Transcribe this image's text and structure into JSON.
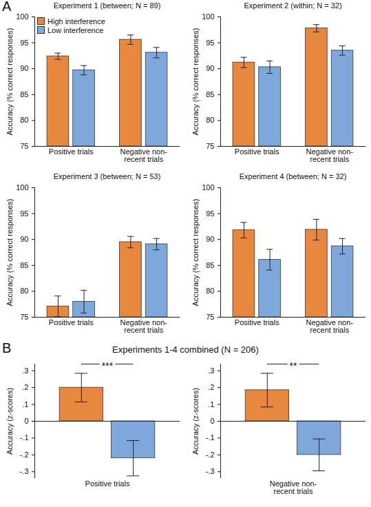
{
  "chart_data": [
    {
      "type": "bar",
      "panel_label": "A",
      "title": "Experiment 1 (between; N = 89)",
      "y_label": "Accuracy (% correct responses)",
      "categories": [
        "Positive trials",
        "Negative non-recent trials"
      ],
      "series": [
        {
          "name": "High interference",
          "color": "#e8873e",
          "values": [
            92.4,
            95.6
          ],
          "errors": [
            0.6,
            0.9
          ]
        },
        {
          "name": "Low interference",
          "color": "#7ea8dc",
          "values": [
            89.7,
            93.1
          ],
          "errors": [
            0.9,
            1.0
          ]
        }
      ],
      "ylim": [
        75,
        100
      ],
      "yticks": [
        75,
        80,
        85,
        90,
        95,
        100
      ],
      "legend": "upper left"
    },
    {
      "type": "bar",
      "title": "Experiment 2 (within; N = 32)",
      "y_label": "Accuracy (% correct responses)",
      "categories": [
        "Positive trials",
        "Negative non-recent trials"
      ],
      "series": [
        {
          "name": "High interference",
          "color": "#e8873e",
          "values": [
            91.2,
            97.8
          ],
          "errors": [
            1.0,
            0.7
          ]
        },
        {
          "name": "Low interference",
          "color": "#7ea8dc",
          "values": [
            90.3,
            93.5
          ],
          "errors": [
            1.2,
            0.9
          ]
        }
      ],
      "ylim": [
        75,
        100
      ],
      "yticks": [
        75,
        80,
        85,
        90,
        95,
        100
      ]
    },
    {
      "type": "bar",
      "title": "Experiment 3 (between; N = 53)",
      "y_label": "Accuracy (% correct responses)",
      "categories": [
        "Positive trials",
        "Negative non-recent trials"
      ],
      "series": [
        {
          "name": "High interference",
          "color": "#e8873e",
          "values": [
            77.1,
            89.5
          ],
          "errors": [
            2.0,
            1.1
          ]
        },
        {
          "name": "Low interference",
          "color": "#7ea8dc",
          "values": [
            78.0,
            89.1
          ],
          "errors": [
            2.2,
            1.1
          ]
        }
      ],
      "ylim": [
        75,
        100
      ],
      "yticks": [
        75,
        80,
        85,
        90,
        95,
        100
      ]
    },
    {
      "type": "bar",
      "title": "Experiment 4 (between; N = 32)",
      "y_label": "Accuracy (% correct responses)",
      "categories": [
        "Positive trials",
        "Negative non-recent trials"
      ],
      "series": [
        {
          "name": "High interference",
          "color": "#e8873e",
          "values": [
            91.8,
            91.9
          ],
          "errors": [
            1.5,
            2.0
          ]
        },
        {
          "name": "Low interference",
          "color": "#7ea8dc",
          "values": [
            86.1,
            88.7
          ],
          "errors": [
            2.0,
            1.5
          ]
        }
      ],
      "ylim": [
        75,
        100
      ],
      "yticks": [
        75,
        80,
        85,
        90,
        95,
        100
      ]
    },
    {
      "type": "bar",
      "panel_label": "B",
      "panel_title": "Experiments 1-4 combined (N = 206)",
      "y_label": "Accuracy (z-scores)",
      "categories": [
        "Positive trials"
      ],
      "series": [
        {
          "name": "High interference",
          "color": "#e8873e",
          "values": [
            0.2
          ],
          "errors": [
            0.085
          ]
        },
        {
          "name": "Low interference",
          "color": "#7ea8dc",
          "values": [
            -0.22
          ],
          "errors": [
            0.105
          ]
        }
      ],
      "ylim": [
        -0.34,
        0.34
      ],
      "yticks": [
        {
          "value": -0.3,
          "label": "-.3"
        },
        {
          "value": -0.2,
          "label": "-.2"
        },
        {
          "value": -0.1,
          "label": "-.1"
        },
        0,
        {
          "value": 0.1,
          "label": ".1"
        },
        {
          "value": 0.2,
          "label": ".2"
        },
        {
          "value": 0.3,
          "label": ".3"
        }
      ],
      "annotations": [
        {
          "text": "***",
          "between": [
            "High interference",
            "Low interference"
          ]
        }
      ]
    },
    {
      "type": "bar",
      "y_label": "Accuracy (z-scores)",
      "categories": [
        "Negative non-recent trials"
      ],
      "series": [
        {
          "name": "High interference",
          "color": "#e8873e",
          "values": [
            0.185
          ],
          "errors": [
            0.1
          ]
        },
        {
          "name": "Low interference",
          "color": "#7ea8dc",
          "values": [
            -0.2
          ],
          "errors": [
            0.095
          ]
        }
      ],
      "ylim": [
        -0.34,
        0.34
      ],
      "yticks": [
        {
          "value": -0.3,
          "label": "-.3"
        },
        {
          "value": -0.2,
          "label": "-.2"
        },
        {
          "value": -0.1,
          "label": "-.1"
        },
        0,
        {
          "value": 0.1,
          "label": ".1"
        },
        {
          "value": 0.2,
          "label": ".2"
        },
        {
          "value": 0.3,
          "label": ".3"
        }
      ],
      "annotations": [
        {
          "text": "**",
          "between": [
            "High interference",
            "Low interference"
          ]
        }
      ]
    }
  ]
}
